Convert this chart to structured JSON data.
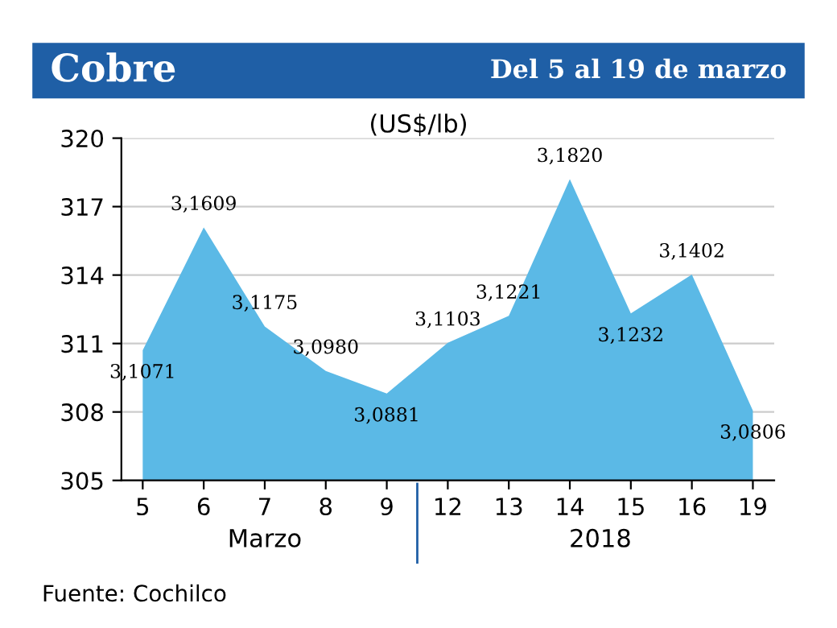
{
  "chart_data": {
    "type": "area",
    "title": "Cobre",
    "subtitle": "Del 5 al 19 de marzo",
    "ylabel": "(US$/lb)",
    "categories": [
      "5",
      "6",
      "7",
      "8",
      "9",
      "12",
      "13",
      "14",
      "15",
      "16",
      "19"
    ],
    "values": [
      310.71,
      316.09,
      311.75,
      309.8,
      308.81,
      311.03,
      312.21,
      318.2,
      312.32,
      314.02,
      308.06
    ],
    "value_labels": [
      "3,1071",
      "3,1609",
      "3,1175",
      "3,0980",
      "3,0881",
      "3,1103",
      "3,1221",
      "3,1820",
      "3,1232",
      "3,1402",
      "3,0806"
    ],
    "color": "#5bb9e6",
    "ylim": [
      305,
      320
    ],
    "yticks": [
      305,
      308,
      311,
      314,
      317,
      320
    ],
    "grid": "y",
    "annotations": [
      "Marzo",
      "2018",
      "Fuente: Cochilco"
    ]
  }
}
